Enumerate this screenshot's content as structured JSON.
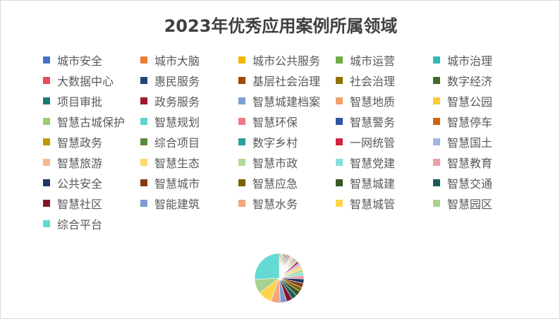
{
  "chart_data": {
    "type": "pie",
    "title": "2023年优秀应用案例所属领域",
    "legend_position": "top",
    "categories": [
      "城市安全",
      "城市大脑",
      "城市公共服务",
      "城市运营",
      "城市治理",
      "大数据中心",
      "惠民服务",
      "基层社会治理",
      "社会治理",
      "数字经济",
      "项目审批",
      "政务服务",
      "智慧城建档案",
      "智慧地质",
      "智慧公园",
      "智慧古城保护",
      "智慧规划",
      "智慧环保",
      "智慧警务",
      "智慧停车",
      "智慧政务",
      "综合项目",
      "数字乡村",
      "一网统管",
      "智慧国土",
      "智慧旅游",
      "智慧生态",
      "智慧市政",
      "智慧党建",
      "智慧教育",
      "公共安全",
      "智慧城市",
      "智慧应急",
      "智慧城建",
      "智慧交通",
      "智慧社区",
      "智能建筑",
      "智慧水务",
      "智慧城管",
      "智慧园区",
      "综合平台"
    ],
    "values": [
      0.4,
      0.4,
      0.4,
      0.4,
      0.4,
      0.4,
      0.4,
      0.4,
      0.4,
      0.4,
      0.4,
      0.4,
      0.4,
      0.4,
      0.4,
      0.4,
      0.4,
      0.4,
      0.4,
      0.4,
      0.4,
      0.4,
      0.4,
      1,
      1,
      1,
      1.2,
      1.4,
      1.4,
      1.6,
      2,
      2,
      2,
      2.4,
      2.4,
      2.8,
      3,
      4.4,
      6.2,
      6.6,
      18
    ],
    "colors": [
      "#4472C4",
      "#ED7D31",
      "#F2B800",
      "#70AD47",
      "#33B8B2",
      "#E64B5C",
      "#264478",
      "#9E480E",
      "#8F7200",
      "#43682B",
      "#1D7A73",
      "#9E1A2E",
      "#7F9ED6",
      "#F1A26E",
      "#FFC83A",
      "#9BCB72",
      "#5FD3CD",
      "#EE7A88",
      "#2E55A1",
      "#D26012",
      "#BF9900",
      "#5A8B3A",
      "#27A19A",
      "#D0233F",
      "#9FB6E0",
      "#F5B98F",
      "#FFD966",
      "#B4D996",
      "#85E0DB",
      "#F29CA6",
      "#1F3864",
      "#843C0C",
      "#7F6000",
      "#385723",
      "#175E59",
      "#841629",
      "#7B9BD2",
      "#F4A97A",
      "#FFD44D",
      "#A9D18E",
      "#66D9D3"
    ]
  }
}
